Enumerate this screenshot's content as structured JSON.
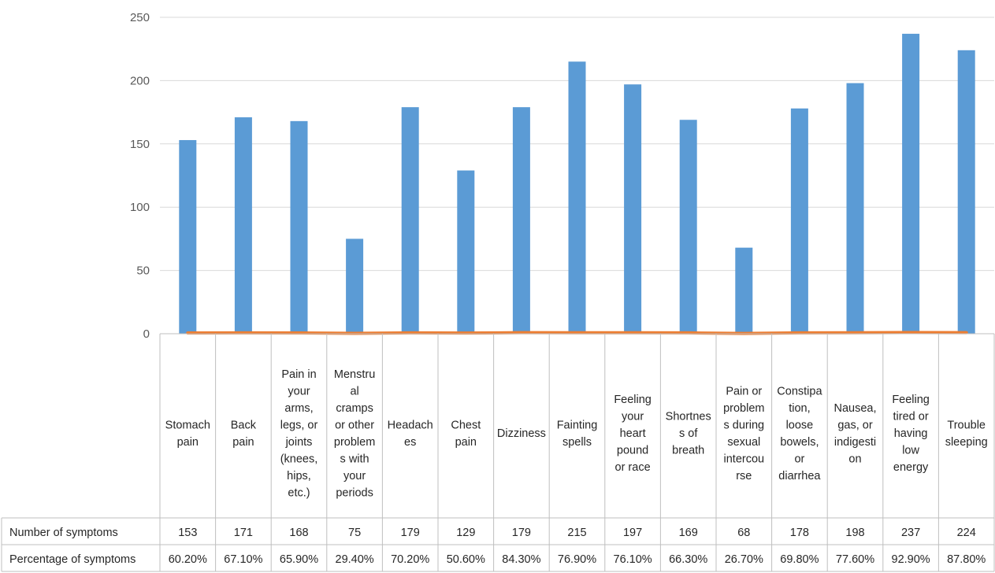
{
  "chart_data": {
    "type": "bar",
    "title": "",
    "xlabel": "",
    "ylabel": "",
    "ylim": [
      0,
      250
    ],
    "yticks": [
      0,
      50,
      100,
      150,
      200,
      250
    ],
    "grid": true,
    "legend": "table rows below chart",
    "categories": [
      "Stomach pain",
      "Back pain",
      "Pain in your arms, legs, or joints (knees, hips, etc.)",
      "Menstrual cramps or other problems with your periods",
      "Headaches",
      "Chest pain",
      "Dizziness",
      "Fainting spells",
      "Feeling your heart pound or race",
      "Shortness of breath",
      "Pain or problems during sexual intercourse",
      "Constipation, loose bowels, or diarrhea",
      "Nausea, gas, or indigestion",
      "Feeling tired or having low energy",
      "Trouble sleeping"
    ],
    "category_label_lines": [
      [
        "Stomach",
        "pain"
      ],
      [
        "Back",
        "pain"
      ],
      [
        "Pain in",
        "your",
        "arms,",
        "legs, or",
        "joints",
        "(knees,",
        "hips,",
        "etc.)"
      ],
      [
        "Menstru",
        "al",
        "cramps",
        "or other",
        "problem",
        "s with",
        "your",
        "periods"
      ],
      [
        "Headach",
        "es"
      ],
      [
        "Chest",
        "pain"
      ],
      [
        "Dizziness"
      ],
      [
        "Fainting",
        "spells"
      ],
      [
        "Feeling",
        "your",
        "heart",
        "pound",
        "or race"
      ],
      [
        "Shortnes",
        "s of",
        "breath"
      ],
      [
        "Pain or",
        "problem",
        "s during",
        "sexual",
        "intercou",
        "rse"
      ],
      [
        "Constipa",
        "tion,",
        "loose",
        "bowels,",
        "or",
        "diarrhea"
      ],
      [
        "Nausea,",
        "gas, or",
        "indigesti",
        "on"
      ],
      [
        "Feeling",
        "tired or",
        "having",
        "low",
        "energy"
      ],
      [
        "Trouble",
        "sleeping"
      ]
    ],
    "series": [
      {
        "name": "Number of symptoms",
        "color": "#5b9bd5",
        "values": [
          153,
          171,
          168,
          75,
          179,
          129,
          179,
          215,
          197,
          169,
          68,
          178,
          198,
          237,
          224
        ],
        "display": [
          "153",
          "171",
          "168",
          "75",
          "179",
          "129",
          "179",
          "215",
          "197",
          "169",
          "68",
          "178",
          "198",
          "237",
          "224"
        ]
      },
      {
        "name": "Percentage of symptoms",
        "color": "#ed7d31",
        "values": [
          0.602,
          0.671,
          0.659,
          0.294,
          0.702,
          0.506,
          0.843,
          0.769,
          0.761,
          0.663,
          0.267,
          0.698,
          0.776,
          0.929,
          0.878
        ],
        "display": [
          "60.20%",
          "67.10%",
          "65.90%",
          "29.40%",
          "70.20%",
          "50.60%",
          "84.30%",
          "76.90%",
          "76.10%",
          "66.30%",
          "26.70%",
          "69.80%",
          "77.60%",
          "92.90%",
          "87.80%"
        ]
      }
    ]
  }
}
